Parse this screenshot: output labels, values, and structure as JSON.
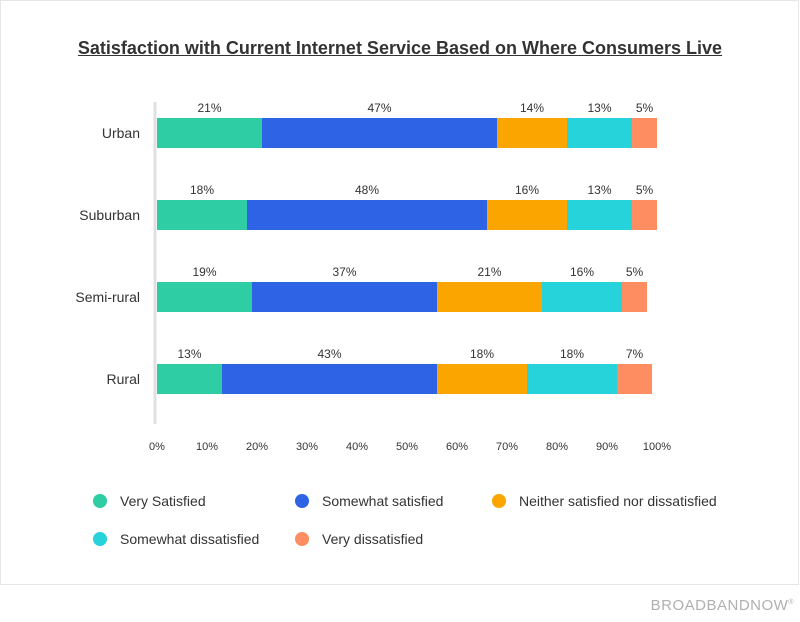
{
  "title": "Satisfaction with Current Internet Service Based on Where Consumers Live",
  "brand": "BROADBANDNOW",
  "brand_mark": "®",
  "colors": {
    "very_satisfied": "#2ecda3",
    "somewhat_satisfied": "#2f63e6",
    "neither": "#fba600",
    "somewhat_dissatisfied": "#27d3db",
    "very_dissatisfied": "#fe8d62"
  },
  "legend": [
    {
      "label": "Very Satisfied",
      "color": "#2ecda3"
    },
    {
      "label": "Somewhat satisfied",
      "color": "#2f63e6"
    },
    {
      "label": "Neither satisfied nor dissatisfied",
      "color": "#fba600"
    },
    {
      "label": "Somewhat dissatisfied",
      "color": "#27d3db"
    },
    {
      "label": "Very dissatisfied",
      "color": "#fe8d62"
    }
  ],
  "chart_data": {
    "type": "bar",
    "orientation": "horizontal",
    "stacked": true,
    "categories": [
      "Urban",
      "Suburban",
      "Semi-rural",
      "Rural"
    ],
    "series": [
      {
        "name": "Very Satisfied",
        "color": "#2ecda3",
        "values": [
          21,
          18,
          19,
          13
        ]
      },
      {
        "name": "Somewhat satisfied",
        "color": "#2f63e6",
        "values": [
          47,
          48,
          37,
          43
        ]
      },
      {
        "name": "Neither satisfied nor dissatisfied",
        "color": "#fba600",
        "values": [
          14,
          16,
          21,
          18
        ]
      },
      {
        "name": "Somewhat dissatisfied",
        "color": "#27d3db",
        "values": [
          13,
          13,
          16,
          18
        ]
      },
      {
        "name": "Very dissatisfied",
        "color": "#fe8d62",
        "values": [
          5,
          5,
          5,
          7
        ]
      }
    ],
    "xlim": [
      0,
      100
    ],
    "xticks": [
      "0%",
      "10%",
      "20%",
      "30%",
      "40%",
      "50%",
      "60%",
      "70%",
      "80%",
      "90%",
      "100%"
    ],
    "value_suffix": "%",
    "grid": false,
    "legend_position": "bottom"
  }
}
